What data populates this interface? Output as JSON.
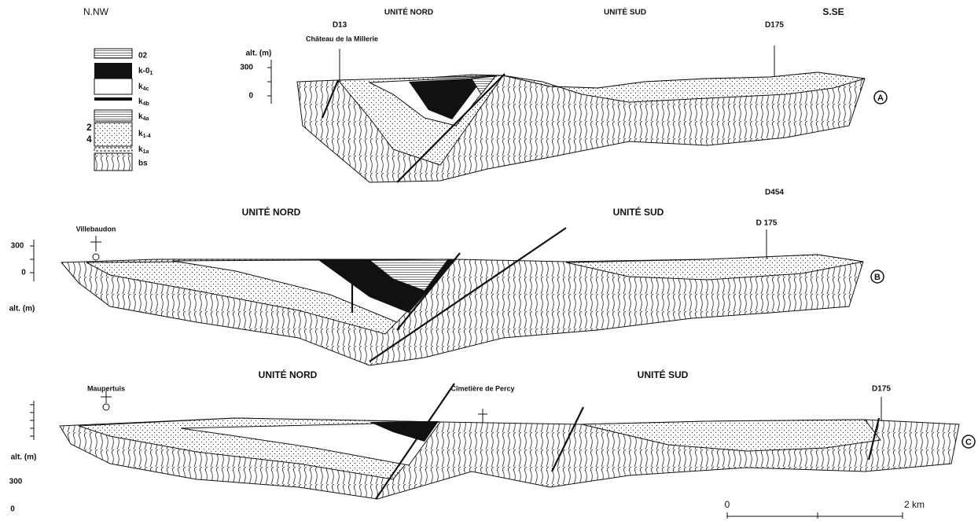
{
  "header": {
    "left_direction": "N.NW",
    "right_direction": "S.SE"
  },
  "legend": {
    "items": [
      {
        "label": "02"
      },
      {
        "base": "k-0",
        "sub": "1"
      },
      {
        "base": "k",
        "sub": "4c"
      },
      {
        "base": "k",
        "sub": "4b"
      },
      {
        "base": "k",
        "sub": "4a"
      },
      {
        "base": "k",
        "sub": "1-4"
      },
      {
        "base": "k",
        "sub": "1a"
      },
      {
        "label": "bs"
      }
    ],
    "markers": [
      "2",
      "4"
    ]
  },
  "sections": [
    {
      "id": "A",
      "unit_north": "UNITÉ NORD",
      "unit_south": "UNITÉ SUD",
      "places": [
        "D13",
        "Château de la Millerie",
        "D175"
      ],
      "axis_label": "alt. (m)",
      "axis_ticks": [
        300,
        0
      ]
    },
    {
      "id": "B",
      "unit_north": "UNITÉ NORD",
      "unit_south": "UNITÉ SUD",
      "places": [
        "D454",
        "Villebaudon",
        "D 175"
      ],
      "axis_label": "alt. (m)",
      "axis_ticks": [
        300,
        0
      ]
    },
    {
      "id": "C",
      "unit_north": "UNITÉ NORD",
      "unit_south": "UNITÉ SUD",
      "places": [
        "Maupertuis",
        "Cimetière de Percy",
        "D175"
      ],
      "axis_label": "alt. (m)",
      "axis_ticks": [
        300,
        0
      ]
    }
  ],
  "scale": {
    "start": "0",
    "end": "2 km"
  }
}
